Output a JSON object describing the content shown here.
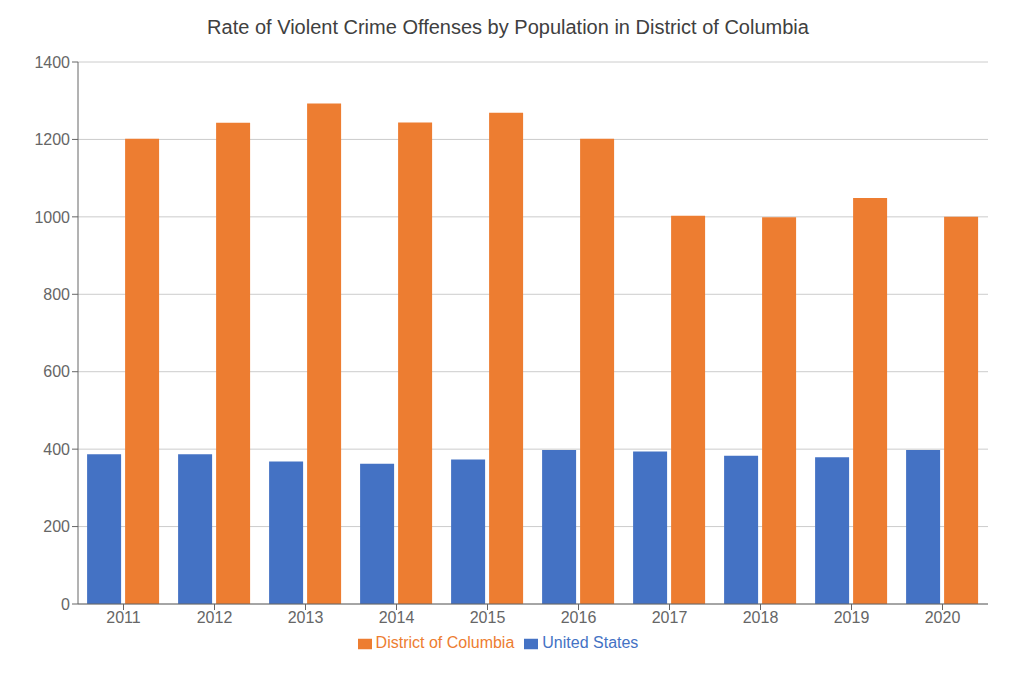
{
  "chart_data": {
    "type": "bar",
    "title": "Rate of Violent Crime Offenses by Population in District of Columbia",
    "categories": [
      "2011",
      "2012",
      "2013",
      "2014",
      "2015",
      "2016",
      "2017",
      "2018",
      "2019",
      "2020"
    ],
    "series": [
      {
        "name": "United States",
        "color": "#4472C4",
        "values": [
          387,
          387,
          368,
          362,
          373,
          398,
          394,
          383,
          379,
          398
        ]
      },
      {
        "name": "District of Columbia",
        "color": "#ED7D31",
        "values": [
          1202,
          1243,
          1293,
          1244,
          1269,
          1202,
          1003,
          999,
          1049,
          1000
        ]
      }
    ],
    "ylim": [
      0,
      1400
    ],
    "yticks": [
      0,
      200,
      400,
      600,
      800,
      1000,
      1200,
      1400
    ],
    "grid": true,
    "legend": "bottom"
  }
}
